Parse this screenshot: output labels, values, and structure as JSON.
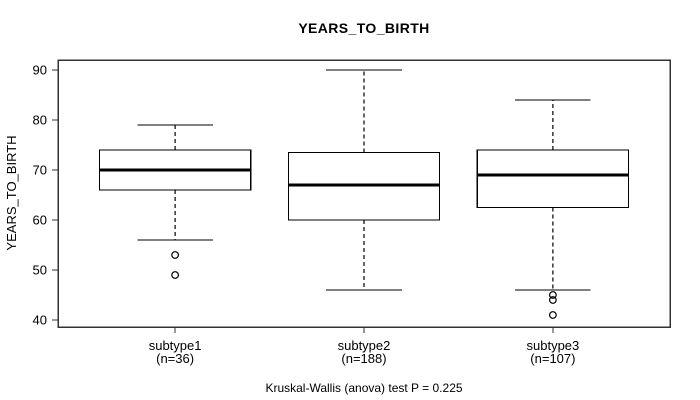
{
  "figure": {
    "title": "YEARS_TO_BIRTH",
    "y_axis_label": "YEARS_TO_BIRTH",
    "footnote": "Kruskal-Wallis (anova) test P = 0.225"
  },
  "chart_data": {
    "type": "boxplot",
    "title": "YEARS_TO_BIRTH",
    "xlabel": "",
    "ylabel": "YEARS_TO_BIRTH",
    "ylim": [
      38.6,
      92
    ],
    "y_ticks": [
      40,
      50,
      60,
      70,
      80,
      90
    ],
    "grid": false,
    "legend": "none",
    "footnote": "Kruskal-Wallis (anova) test P = 0.225",
    "categories": [
      "subtype1",
      "subtype2",
      "subtype3"
    ],
    "groups": [
      {
        "label": "subtype1",
        "sublabel": "(n=36)",
        "n": 36,
        "whisker_low": 56,
        "q1": 66,
        "median": 70,
        "q3": 74,
        "whisker_high": 79,
        "outliers": [
          53,
          49
        ]
      },
      {
        "label": "subtype2",
        "sublabel": "(n=188)",
        "n": 188,
        "whisker_low": 46,
        "q1": 60,
        "median": 67,
        "q3": 73.5,
        "whisker_high": 90,
        "outliers": []
      },
      {
        "label": "subtype3",
        "sublabel": "(n=107)",
        "n": 107,
        "whisker_low": 46,
        "q1": 62.5,
        "median": 69,
        "q3": 74,
        "whisker_high": 84,
        "outliers": [
          45,
          44,
          41
        ]
      }
    ],
    "style": {
      "box_fill": "#ffffff",
      "box_border": "#000000",
      "median_color": "#000000",
      "whisker_color": "#000000",
      "outlier_color": "#000000",
      "frame_color": "#333333",
      "background": "#ffffff"
    }
  }
}
